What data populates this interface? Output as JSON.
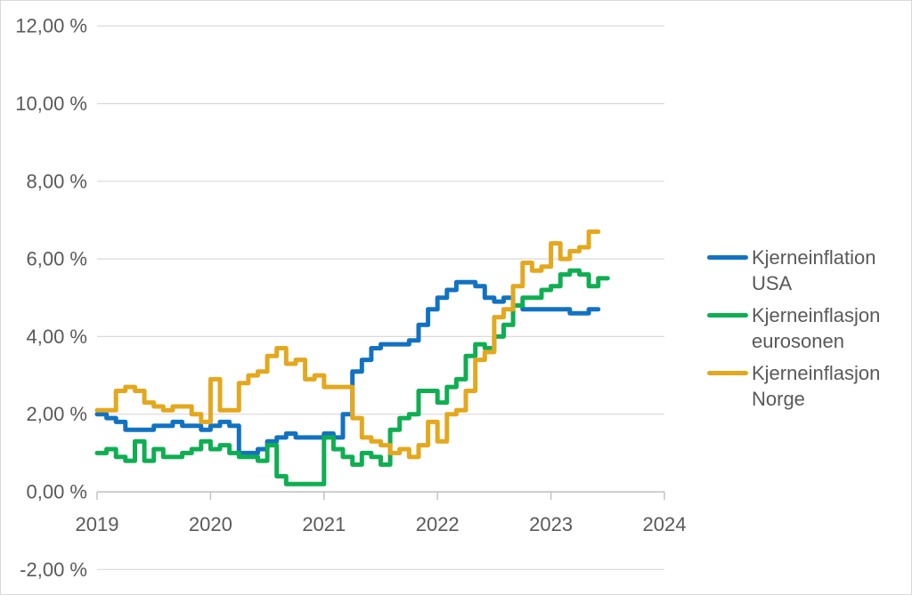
{
  "chart_data": {
    "type": "line",
    "subtype": "step-monthly",
    "title": "",
    "frequency": "monthly",
    "x_start_month": "2019-01",
    "grid": true,
    "legend_position": "right",
    "x_axis": {
      "tick_labels": [
        "2019",
        "2020",
        "2021",
        "2022",
        "2023",
        "2024"
      ]
    },
    "y_axis": {
      "range": [
        -2,
        12
      ],
      "ticks": [
        {
          "value": 12,
          "label": "12,00 %"
        },
        {
          "value": 10,
          "label": "10,00 %"
        },
        {
          "value": 8,
          "label": "8,00 %"
        },
        {
          "value": 6,
          "label": "6,00 %"
        },
        {
          "value": 4,
          "label": "4,00 %"
        },
        {
          "value": 2,
          "label": "2,00 %"
        },
        {
          "value": 0,
          "label": "0,00 %"
        },
        {
          "value": -2,
          "label": "-2,00 %"
        }
      ]
    },
    "series": [
      {
        "name": "Kjerneinflation USA",
        "label_lines": [
          "Kjerneinflation",
          "USA"
        ],
        "color": "#1272C2",
        "end_month": "2023-05",
        "values": [
          2.0,
          1.9,
          1.8,
          1.6,
          1.6,
          1.6,
          1.7,
          1.7,
          1.8,
          1.7,
          1.7,
          1.6,
          1.7,
          1.8,
          1.7,
          1.0,
          1.0,
          1.1,
          1.3,
          1.4,
          1.5,
          1.4,
          1.4,
          1.4,
          1.5,
          1.4,
          2.0,
          3.1,
          3.4,
          3.7,
          3.8,
          3.8,
          3.8,
          3.9,
          4.3,
          4.7,
          5.0,
          5.2,
          5.4,
          5.4,
          5.3,
          5.0,
          4.9,
          5.0,
          4.8,
          4.7,
          4.7,
          4.7,
          4.7,
          4.7,
          4.6,
          4.6,
          4.7
        ]
      },
      {
        "name": "Kjerneinflasjon eurosonen",
        "label_lines": [
          "Kjerneinflasjon",
          "eurosonen"
        ],
        "color": "#0FAE52",
        "end_month": "2023-06",
        "values": [
          1.0,
          1.1,
          0.9,
          0.8,
          1.3,
          0.8,
          1.1,
          0.9,
          0.9,
          1.0,
          1.1,
          1.3,
          1.1,
          1.2,
          1.0,
          0.9,
          0.9,
          0.8,
          1.2,
          0.4,
          0.2,
          0.2,
          0.2,
          0.2,
          1.4,
          1.1,
          0.9,
          0.7,
          1.0,
          0.9,
          0.7,
          1.6,
          1.9,
          2.0,
          2.6,
          2.6,
          2.3,
          2.7,
          2.9,
          3.5,
          3.8,
          3.7,
          4.0,
          4.3,
          4.8,
          5.0,
          5.0,
          5.2,
          5.3,
          5.6,
          5.7,
          5.6,
          5.3,
          5.5
        ]
      },
      {
        "name": "Kjerneinflasjon Norge",
        "label_lines": [
          "Kjerneinflasjon",
          "Norge"
        ],
        "color": "#E3A81E",
        "end_month": "2023-05",
        "values": [
          2.1,
          2.1,
          2.6,
          2.7,
          2.6,
          2.3,
          2.2,
          2.1,
          2.2,
          2.2,
          2.0,
          1.8,
          2.9,
          2.1,
          2.1,
          2.8,
          3.0,
          3.1,
          3.5,
          3.7,
          3.3,
          3.4,
          2.9,
          3.0,
          2.7,
          2.7,
          2.7,
          1.9,
          1.4,
          1.3,
          1.2,
          1.0,
          1.1,
          0.9,
          1.2,
          1.8,
          1.3,
          2.0,
          2.1,
          2.6,
          3.4,
          3.6,
          4.5,
          4.7,
          5.3,
          5.9,
          5.7,
          5.8,
          6.4,
          6.0,
          6.2,
          6.3,
          6.7
        ]
      }
    ],
    "colors": {
      "gridline": "#D9D9D9",
      "axis": "#BFBFBF",
      "text": "#595959",
      "background": "#FFFFFF",
      "border": "#D9D9D9"
    }
  }
}
